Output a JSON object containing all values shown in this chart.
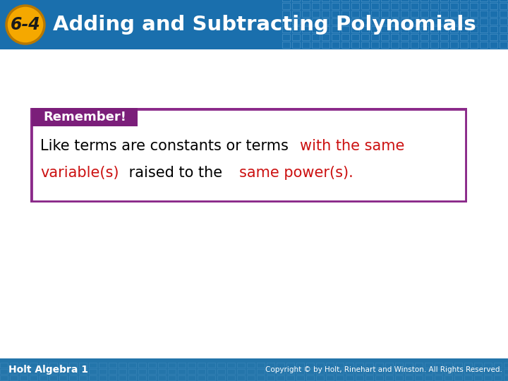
{
  "title": "Adding and Subtracting Polynomials",
  "lesson_num": "6-4",
  "header_bg_color": "#1a6fad",
  "header_text_color": "#ffffff",
  "badge_bg_color": "#f5a800",
  "badge_text_color": "#1a1a1a",
  "body_bg_color": "#ffffff",
  "footer_bg_color": "#2475aa",
  "footer_text_left": "Holt Algebra 1",
  "footer_text_right": "Copyright © by Holt, Rinehart and Winston. All Rights Reserved.",
  "remember_bg": "#7b1e7a",
  "remember_text": "Remember!",
  "remember_text_color": "#ffffff",
  "box_border_color": "#8b2a8a",
  "body_text_color": "#000000",
  "red_text_color": "#cc1111",
  "grid_color": "#4a90c4",
  "figsize": [
    7.2,
    5.4
  ],
  "dpi": 100
}
